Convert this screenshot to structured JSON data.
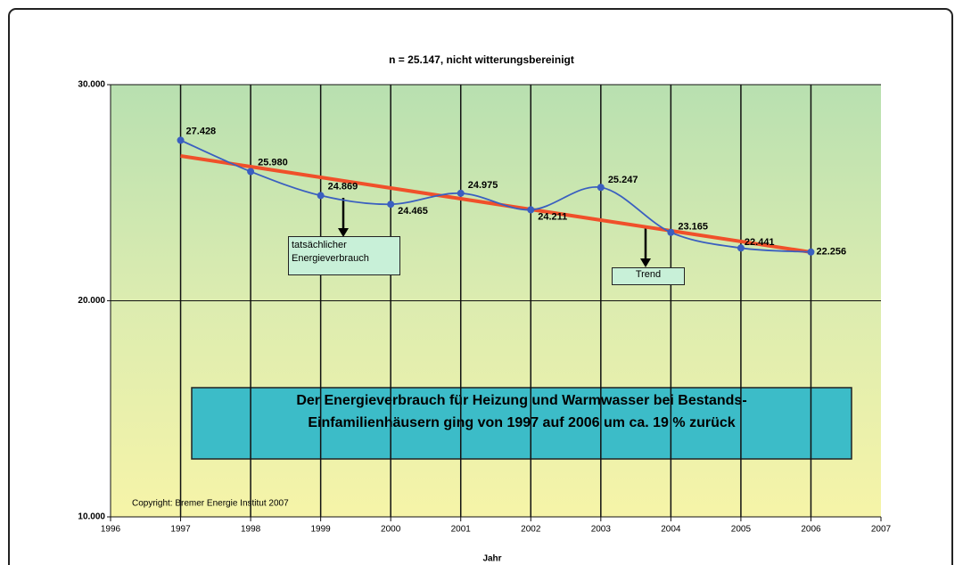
{
  "chart_data": {
    "type": "line",
    "title": "n = 25.147, nicht witterungsbereinigt",
    "x_label": "Jahr",
    "x": [
      1997,
      1998,
      1999,
      2000,
      2001,
      2002,
      2003,
      2004,
      2005,
      2006
    ],
    "series": [
      {
        "name": "tatsächlicher Energieverbrauch",
        "color": "#3a5fc0",
        "values": [
          27428,
          25980,
          24869,
          24465,
          24975,
          24211,
          25247,
          23165,
          22441,
          22256
        ],
        "value_labels": [
          "27.428",
          "25.980",
          "24.869",
          "24.465",
          "24.975",
          "24.211",
          "25.247",
          "23.165",
          "22.441",
          "22.256"
        ]
      },
      {
        "name": "Trend",
        "color": "#f0502a",
        "values": [
          26700,
          26206,
          25711,
          25217,
          24722,
          24228,
          23733,
          23239,
          22744,
          22250
        ]
      }
    ],
    "xlim": [
      1996,
      2007
    ],
    "xticks": [
      1996,
      1997,
      1998,
      1999,
      2000,
      2001,
      2002,
      2003,
      2004,
      2005,
      2006,
      2007
    ],
    "ylim": [
      10000,
      30000
    ],
    "yticks": [
      {
        "value": 10000,
        "label": "10.000"
      },
      {
        "value": 20000,
        "label": "20.000"
      },
      {
        "value": 30000,
        "label": "30.000"
      }
    ],
    "grid": true,
    "annotation": [
      "Der Energieverbrauch für Heizung und Warmwasser bei Bestands-",
      "Einfamilienhäusern ging von 1997 auf 2006 um ca. 19 % zurück"
    ],
    "copyright": "Copyright: Bremer Energie Institut 2007"
  }
}
